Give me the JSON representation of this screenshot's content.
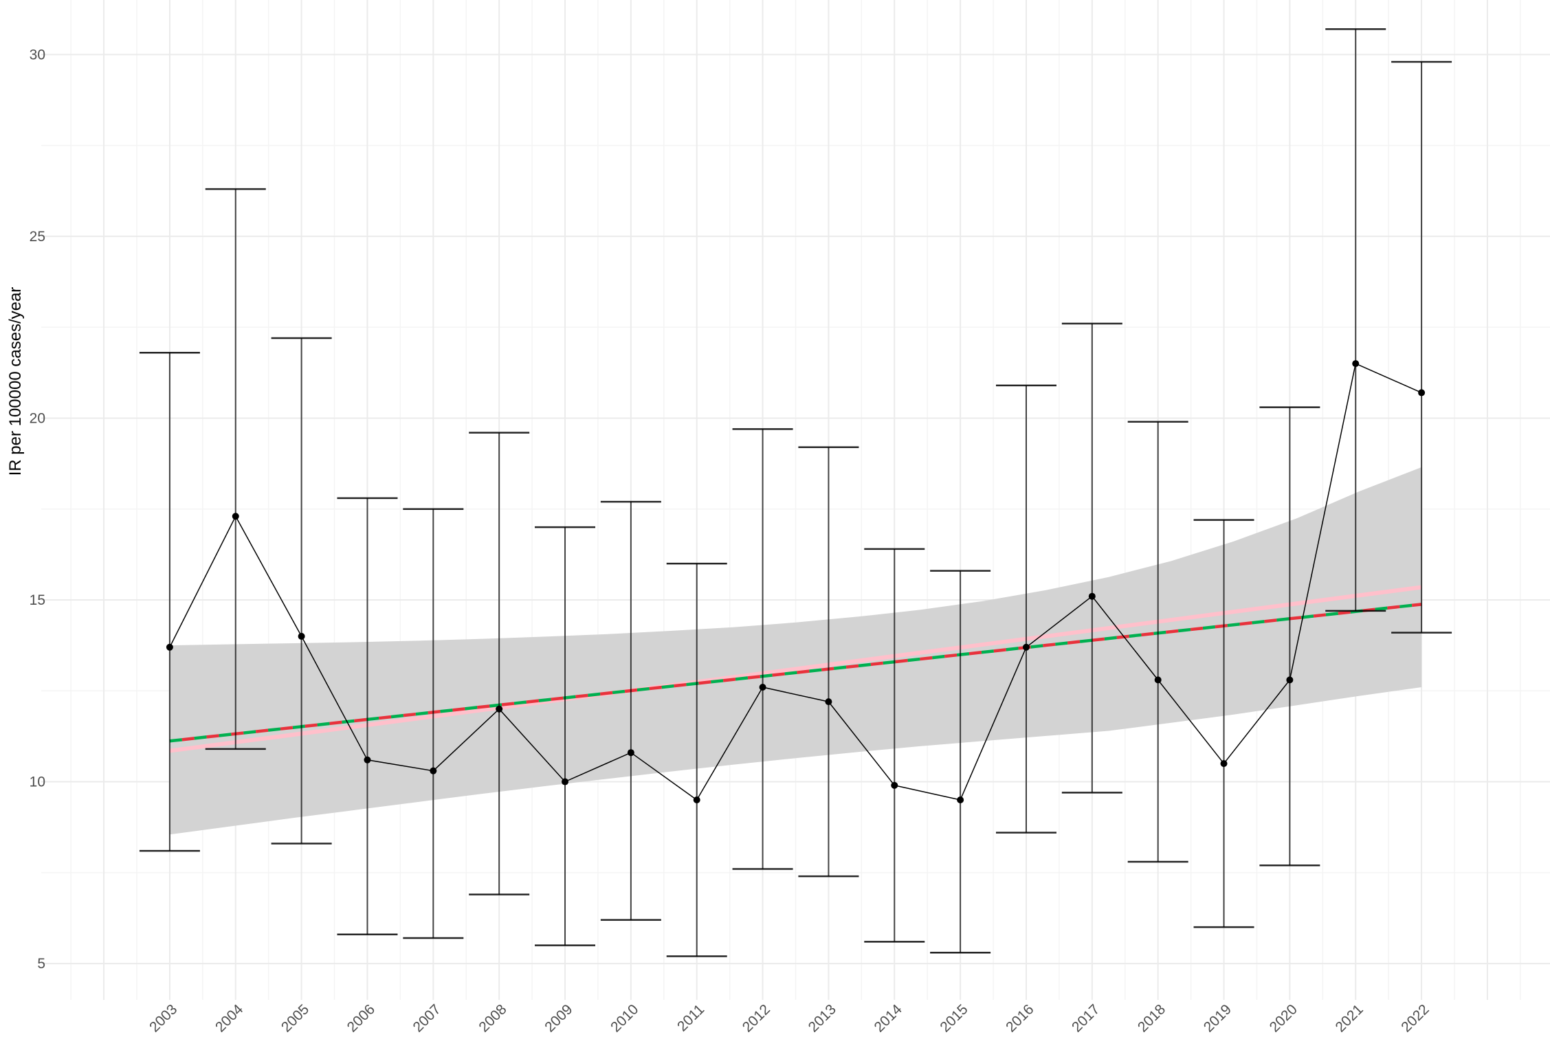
{
  "chart_data": {
    "type": "line",
    "title": "",
    "xlabel": "",
    "ylabel": "IR per 100000 cases/year",
    "ylim": [
      4,
      31.5
    ],
    "xlim": [
      2001.05,
      2023.95
    ],
    "yticks": [
      5,
      10,
      15,
      20,
      25,
      30
    ],
    "grid": true,
    "legend": "none",
    "x": [
      2003,
      2004,
      2005,
      2006,
      2007,
      2008,
      2009,
      2010,
      2011,
      2012,
      2013,
      2014,
      2015,
      2016,
      2017,
      2018,
      2019,
      2020,
      2021,
      2022
    ],
    "x_labels": [
      "2003",
      "2004",
      "2005",
      "2006",
      "2007",
      "2008",
      "2009",
      "2010",
      "2011",
      "2012",
      "2013",
      "2014",
      "2015",
      "2016",
      "2017",
      "2018",
      "2019",
      "2020",
      "2021",
      "2022"
    ],
    "series": [
      {
        "values": [
          13.7,
          17.3,
          14.0,
          10.6,
          10.3,
          12.0,
          10.0,
          10.8,
          9.5,
          12.6,
          12.2,
          9.9,
          9.5,
          13.7,
          15.1,
          12.8,
          10.5,
          12.8,
          21.5,
          20.7
        ],
        "lower": [
          8.1,
          10.9,
          8.3,
          5.8,
          5.7,
          6.9,
          5.5,
          6.2,
          5.2,
          7.6,
          7.4,
          5.6,
          5.3,
          8.6,
          9.7,
          7.8,
          6.0,
          7.7,
          14.7,
          14.1
        ],
        "upper": [
          21.8,
          26.3,
          22.2,
          17.8,
          17.5,
          19.6,
          17.0,
          17.7,
          16.0,
          19.7,
          19.2,
          16.4,
          15.8,
          20.9,
          22.6,
          19.9,
          17.2,
          20.3,
          30.7,
          29.8
        ]
      }
    ],
    "trend_lines": [
      {
        "style": "solid",
        "color": "#ffc0cb",
        "y_start": 10.85,
        "y_end": 15.35
      },
      {
        "style": "dashed",
        "color": "#00b050",
        "y_start": 11.12,
        "y_end": 14.88
      },
      {
        "style": "dashed",
        "color": "#e8323c",
        "y_start": 11.12,
        "y_end": 14.88
      }
    ],
    "confidence_band": {
      "color": "#d3d3d3",
      "upper": [
        13.75,
        13.78,
        13.81,
        13.84,
        13.88,
        13.93,
        13.99,
        14.06,
        14.15,
        14.25,
        14.38,
        14.54,
        14.73,
        14.97,
        15.27,
        15.63,
        16.07,
        16.61,
        17.24,
        17.98,
        18.65
      ],
      "lower": [
        8.55,
        8.78,
        9.01,
        9.23,
        9.45,
        9.67,
        9.88,
        10.08,
        10.28,
        10.47,
        10.65,
        10.82,
        10.98,
        11.12,
        11.26,
        11.4,
        11.62,
        11.85,
        12.1,
        12.36,
        12.6
      ]
    }
  }
}
